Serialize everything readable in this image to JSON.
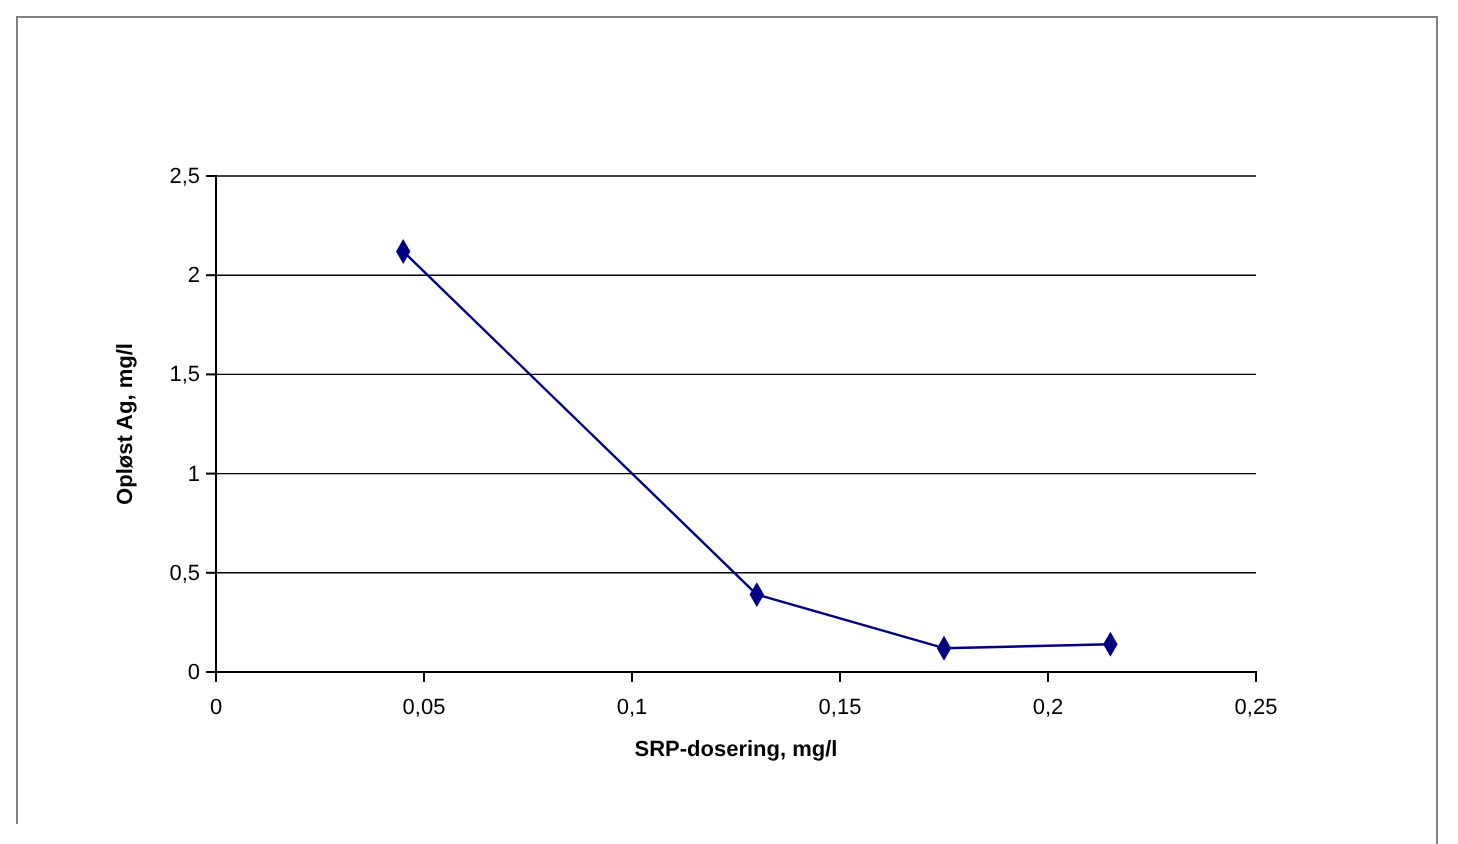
{
  "chart_data": {
    "type": "line",
    "xlabel": "SRP-dosering, mg/l",
    "ylabel": "Opløst Ag, mg/l",
    "x": [
      0.045,
      0.13,
      0.175,
      0.215
    ],
    "series": [
      {
        "color": "#000080",
        "values": [
          2.12,
          0.39,
          0.12,
          0.14
        ]
      }
    ],
    "xlim": [
      0,
      0.25
    ],
    "xticks": [
      0,
      {
        "value": 0.05,
        "label": "0,05"
      },
      {
        "value": 0.1,
        "label": "0,1"
      },
      {
        "value": 0.15,
        "label": "0,15"
      },
      {
        "value": 0.2,
        "label": "0,2"
      },
      {
        "value": 0.25,
        "label": "0,25"
      }
    ],
    "ylim": [
      0,
      2.5
    ],
    "yticks": [
      0,
      {
        "value": 0.5,
        "label": "0,5"
      },
      1,
      {
        "value": 1.5,
        "label": "1,5"
      },
      2,
      {
        "value": 2.5,
        "label": "2,5"
      }
    ],
    "grid": "y",
    "marker": "diamond",
    "line_style": "solid"
  }
}
